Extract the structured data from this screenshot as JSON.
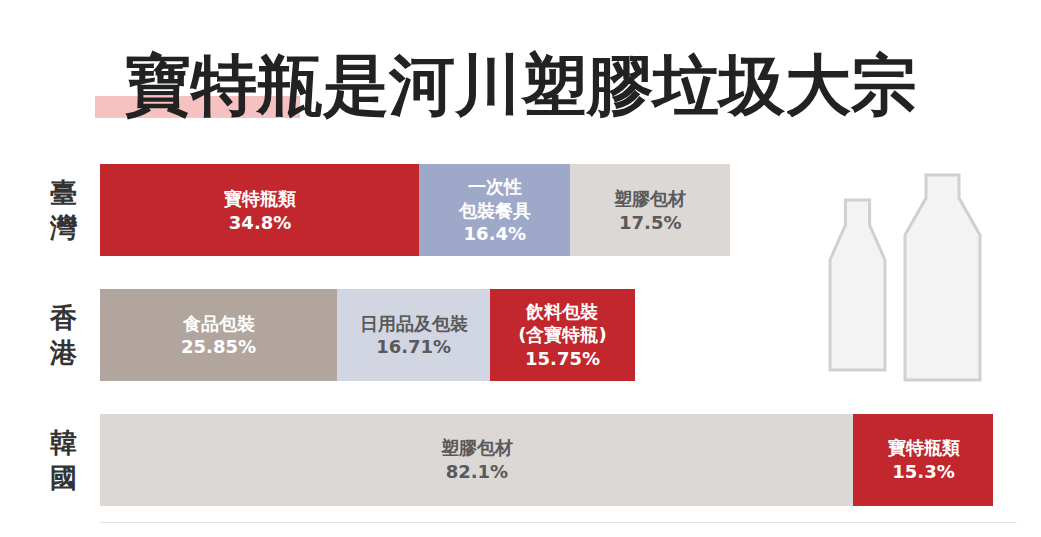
{
  "chart_data": {
    "type": "bar",
    "title": "寶特瓶是河川塑膠垃圾大宗",
    "orientation": "horizontal",
    "stacked": true,
    "data_labels": true,
    "tick_labels": "y",
    "grid": false,
    "categories": [
      "臺灣",
      "香港",
      "韓國"
    ],
    "xlim": [
      0,
      100
    ],
    "series": [
      {
        "name": "寶特瓶類",
        "color": "#c1272d",
        "values": [
          34.8,
          null,
          null
        ],
        "value_labels": [
          "34.8%",
          null,
          null
        ]
      },
      {
        "name": "一次性包裝餐具",
        "color": "#9ea9c9",
        "values": [
          16.4,
          null,
          null
        ],
        "value_labels": [
          "16.4%",
          null,
          null
        ]
      },
      {
        "name": "塑膠包材",
        "color": "#dcd8d6",
        "values": [
          17.5,
          null,
          null
        ],
        "value_labels": [
          "17.5%",
          null,
          null
        ]
      },
      {
        "name": "食品包裝",
        "color": "#b1a59e",
        "values": [
          null,
          25.85,
          null
        ],
        "value_labels": [
          null,
          "25.85%",
          null
        ]
      },
      {
        "name": "日用品及包裝",
        "color": "#d2d6e2",
        "values": [
          null,
          16.71,
          null
        ],
        "value_labels": [
          null,
          "16.71%",
          null
        ]
      },
      {
        "name": "飲料包裝(含寶特瓶)",
        "color": "#c1272d",
        "values": [
          null,
          15.75,
          null
        ],
        "value_labels": [
          null,
          "15.75%",
          null
        ]
      },
      {
        "name": "塑膠包材",
        "color": "#dcd8d6",
        "values": [
          null,
          null,
          82.1
        ],
        "value_labels": [
          null,
          null,
          "82.1%"
        ]
      },
      {
        "name": "寶特瓶類",
        "color": "#c1272d",
        "values": [
          null,
          null,
          15.3
        ],
        "value_labels": [
          null,
          null,
          "15.3%"
        ]
      }
    ]
  }
}
